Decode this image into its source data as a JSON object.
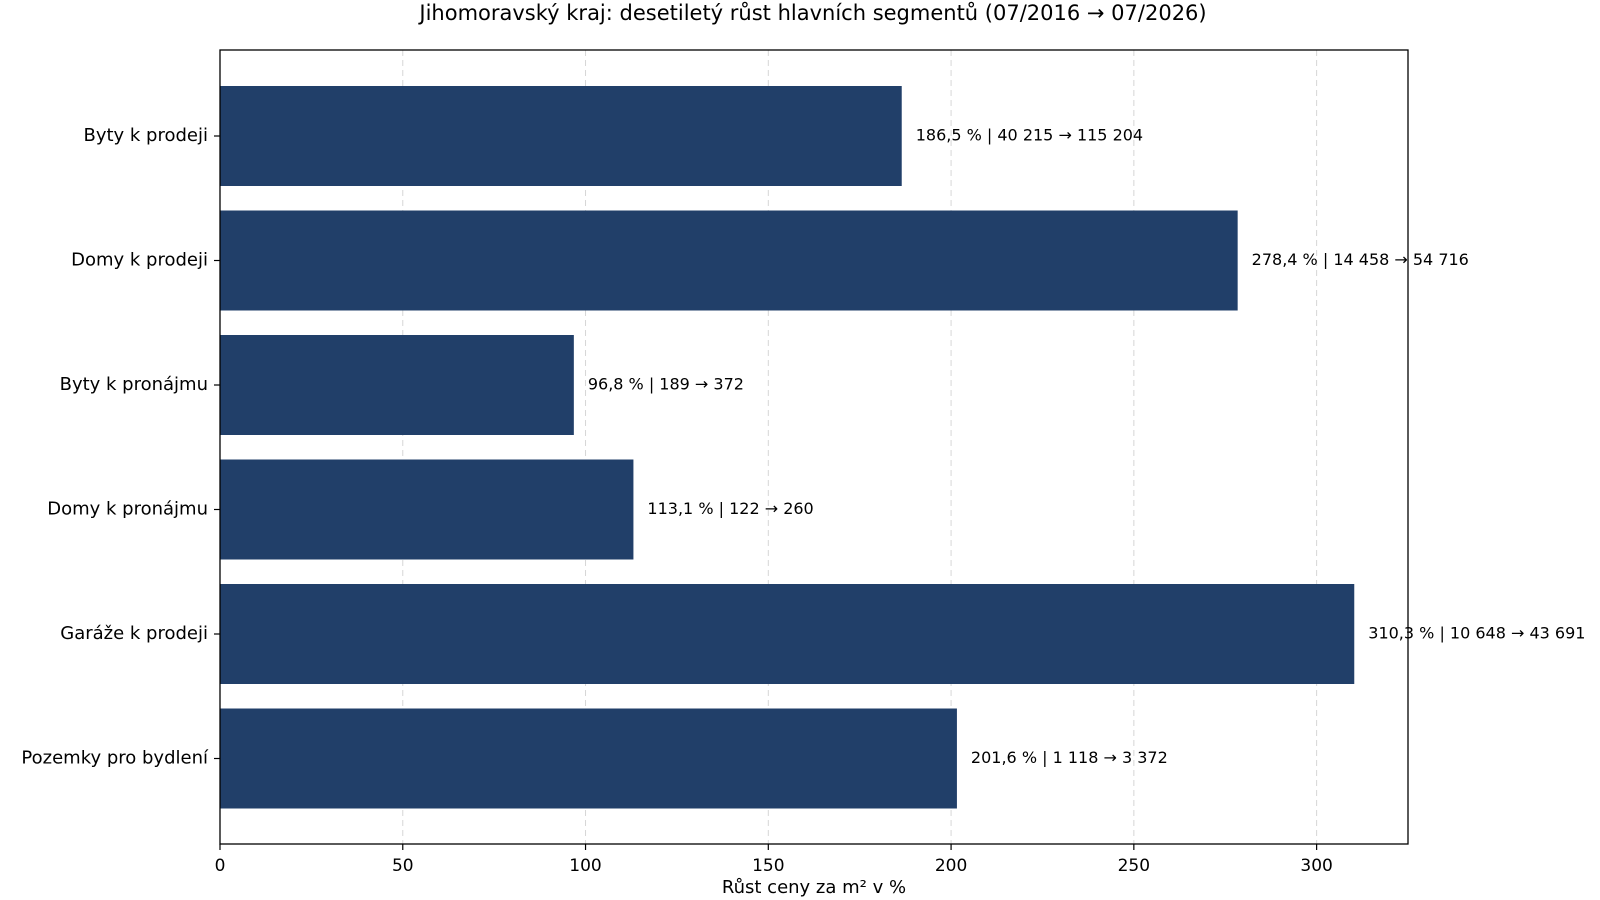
{
  "chart_data": {
    "type": "bar",
    "orientation": "horizontal",
    "title": "Jihomoravský kraj: desetiletý růst hlavních segmentů (07/2016 → 07/2026)",
    "xlabel": "Růst ceny za m² v %",
    "ylabel": "",
    "xlim": [
      0,
      325
    ],
    "xticks": [
      0,
      50,
      100,
      150,
      200,
      250,
      300
    ],
    "grid": "x-dashed",
    "bar_color": "#213f69",
    "categories": [
      "Byty k prodeji",
      "Domy k prodeji",
      "Byty k pronájmu",
      "Domy k pronájmu",
      "Garáže k prodeji",
      "Pozemky pro bydlení"
    ],
    "values": [
      186.5,
      278.4,
      96.8,
      113.1,
      310.3,
      201.6
    ],
    "data_labels": [
      "186,5 % | 40 215 → 115 204",
      "278,4 % | 14 458 → 54 716",
      "96,8 % | 189 → 372",
      "113,1 % | 122 → 260",
      "310,3 % | 10 648 → 43 691",
      "201,6 % | 1 118 → 3 372"
    ]
  }
}
